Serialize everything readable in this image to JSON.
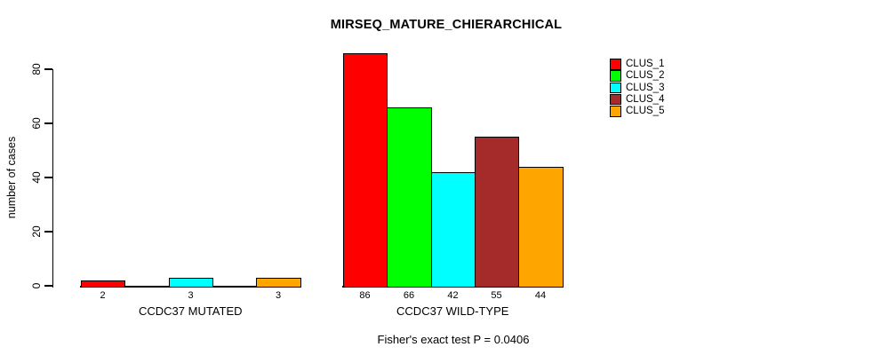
{
  "title": "MIRSEQ_MATURE_CHIERARCHICAL",
  "subtitle": "Fisher's exact test P = 0.0406",
  "y_axis": {
    "label": "number of cases",
    "ticks": [
      0,
      20,
      40,
      60,
      80
    ]
  },
  "chart_data": {
    "type": "bar",
    "title": "MIRSEQ_MATURE_CHIERARCHICAL",
    "subtitle": "Fisher's exact test P = 0.0406",
    "ylabel": "number of cases",
    "xlabel": "",
    "ylim": [
      0,
      87
    ],
    "yticks": [
      0,
      20,
      40,
      60,
      80
    ],
    "grid": false,
    "legend_position": "top-right",
    "value_labels": "numeric count shown below each non-zero bar",
    "categories": [
      "CCDC37 MUTATED",
      "CCDC37 WILD-TYPE"
    ],
    "series": [
      {
        "name": "CLUS_1",
        "color": "#FF0000",
        "values": [
          2,
          86
        ]
      },
      {
        "name": "CLUS_2",
        "color": "#00FF00",
        "values": [
          0,
          66
        ]
      },
      {
        "name": "CLUS_3",
        "color": "#00FFFF",
        "values": [
          3,
          42
        ]
      },
      {
        "name": "CLUS_4",
        "color": "#A52A2A",
        "values": [
          0,
          55
        ]
      },
      {
        "name": "CLUS_5",
        "color": "#FFA500",
        "values": [
          3,
          44
        ]
      }
    ]
  }
}
